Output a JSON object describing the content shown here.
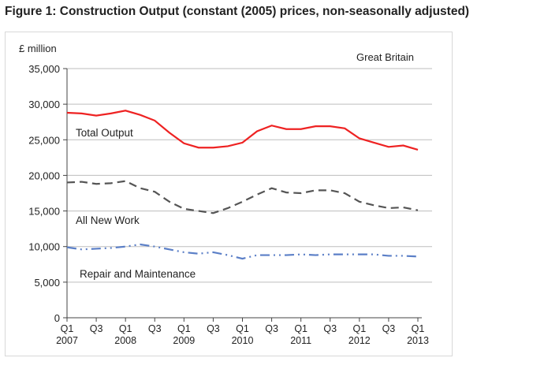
{
  "title": "Figure 1: Construction Output (constant (2005) prices, non-seasonally adjusted)",
  "chart_data": {
    "type": "line",
    "title": "Figure 1: Construction Output (constant (2005) prices, non-seasonally adjusted)",
    "ylabel": "£ million",
    "annotation": "Great Britain",
    "ylim": [
      0,
      35000
    ],
    "yticks": [
      0,
      5000,
      10000,
      15000,
      20000,
      25000,
      30000,
      35000
    ],
    "ytick_labels": [
      "0",
      "5,000",
      "10,000",
      "15,000",
      "20,000",
      "25,000",
      "30,000",
      "35,000"
    ],
    "grid": true,
    "x": [
      "Q1 2007",
      "Q2 2007",
      "Q3 2007",
      "Q4 2007",
      "Q1 2008",
      "Q2 2008",
      "Q3 2008",
      "Q4 2008",
      "Q1 2009",
      "Q2 2009",
      "Q3 2009",
      "Q4 2009",
      "Q1 2010",
      "Q2 2010",
      "Q3 2010",
      "Q4 2010",
      "Q1 2011",
      "Q2 2011",
      "Q3 2011",
      "Q4 2011",
      "Q1 2012",
      "Q2 2012",
      "Q3 2012",
      "Q4 2012",
      "Q1 2013"
    ],
    "xtick_labels": [
      {
        "q": "Q1",
        "y": "2007"
      },
      {
        "q": "Q3",
        "y": ""
      },
      {
        "q": "Q1",
        "y": "2008"
      },
      {
        "q": "Q3",
        "y": ""
      },
      {
        "q": "Q1",
        "y": "2009"
      },
      {
        "q": "Q3",
        "y": ""
      },
      {
        "q": "Q1",
        "y": "2010"
      },
      {
        "q": "Q3",
        "y": ""
      },
      {
        "q": "Q1",
        "y": "2011"
      },
      {
        "q": "Q3",
        "y": ""
      },
      {
        "q": "Q1",
        "y": "2012"
      },
      {
        "q": "Q3",
        "y": ""
      },
      {
        "q": "Q1",
        "y": "2013"
      }
    ],
    "series": [
      {
        "name": "Total Output",
        "color": "#ee2222",
        "style": "solid",
        "values": [
          28800,
          28700,
          28400,
          28700,
          29100,
          28500,
          27700,
          26000,
          24500,
          23900,
          23900,
          24100,
          24600,
          26200,
          27000,
          26500,
          26500,
          26900,
          26900,
          26600,
          25200,
          24600,
          24000,
          24200,
          23600
        ]
      },
      {
        "name": "All New Work",
        "color": "#555555",
        "style": "dashed",
        "values": [
          19000,
          19100,
          18800,
          18900,
          19200,
          18200,
          17700,
          16300,
          15300,
          15000,
          14700,
          15400,
          16300,
          17300,
          18200,
          17600,
          17500,
          17900,
          17900,
          17500,
          16300,
          15800,
          15400,
          15500,
          15100
        ]
      },
      {
        "name": "Repair and Maintenance",
        "color": "#5b7fc7",
        "style": "dashdot",
        "values": [
          9900,
          9600,
          9700,
          9800,
          10000,
          10300,
          10000,
          9600,
          9200,
          9000,
          9200,
          8800,
          8300,
          8800,
          8800,
          8800,
          8900,
          8800,
          8900,
          8900,
          8900,
          8900,
          8700,
          8700,
          8600
        ]
      }
    ]
  }
}
